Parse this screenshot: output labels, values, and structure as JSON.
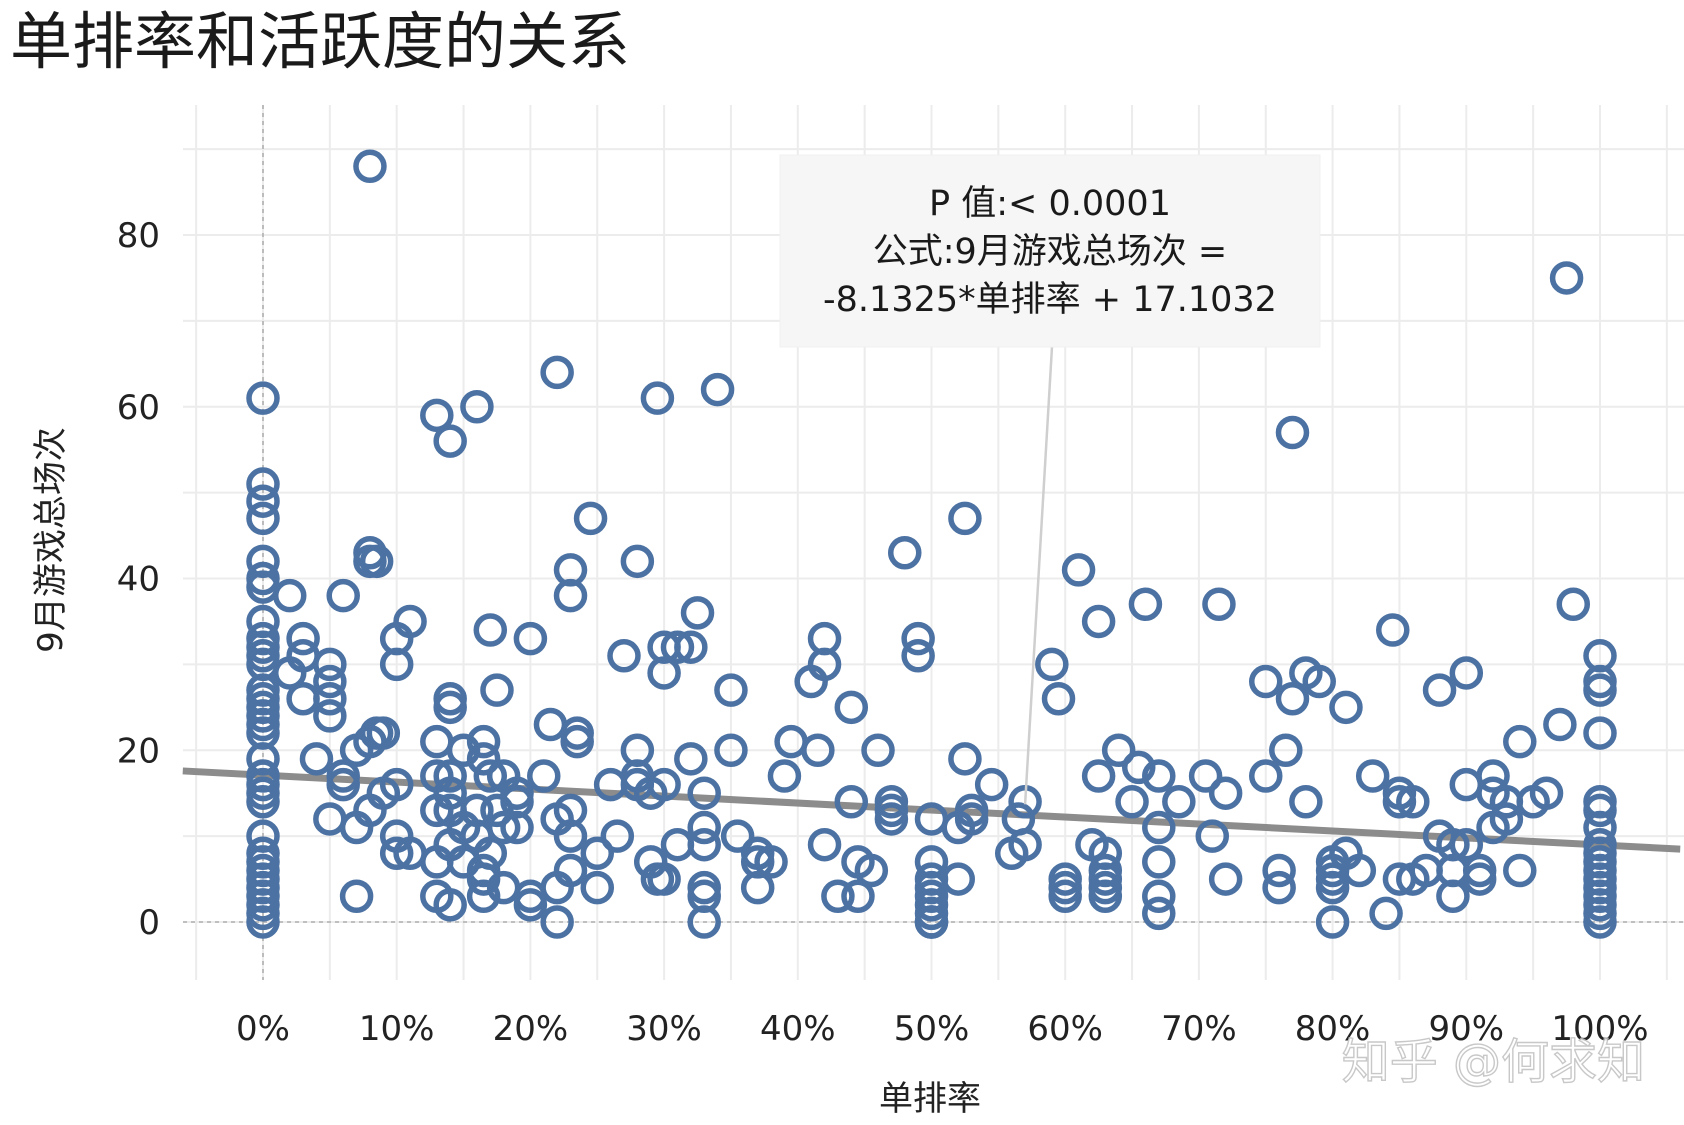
{
  "title": "单排率和活跃度的关系",
  "watermark": "知乎 @何求知",
  "chart_data": {
    "type": "scatter",
    "title": "单排率和活跃度的关系",
    "xlabel": "单排率",
    "ylabel": "9月游戏总场次",
    "xlim": [
      -0.06,
      1.06
    ],
    "ylim": [
      -7,
      95
    ],
    "x_tick_labels": [
      "0%",
      "10%",
      "20%",
      "30%",
      "40%",
      "50%",
      "60%",
      "70%",
      "80%",
      "90%",
      "100%"
    ],
    "y_tick_labels": [
      "0",
      "20",
      "40",
      "60",
      "80"
    ],
    "x_ticks": [
      0,
      0.1,
      0.2,
      0.3,
      0.4,
      0.5,
      0.6,
      0.7,
      0.8,
      0.9,
      1.0
    ],
    "y_ticks": [
      0,
      20,
      40,
      60,
      80
    ],
    "grid": true,
    "colors": {
      "points": "#4c72a3",
      "trend": "#8c8c8c",
      "reference": "#b0b0b0"
    },
    "trendline": {
      "slope": -8.1325,
      "intercept": 17.1032
    },
    "annotation": {
      "lines": [
        "P 值:< 0.0001",
        "公式:9月游戏总场次 =",
        "-8.1325*单排率 + 17.1032"
      ],
      "anchor": [
        0.57,
        13.7
      ]
    },
    "series": [
      {
        "points": [
          [
            0,
            61
          ],
          [
            0,
            51
          ],
          [
            0,
            49
          ],
          [
            0,
            47
          ],
          [
            0,
            42
          ],
          [
            0,
            40
          ],
          [
            0,
            39
          ],
          [
            0,
            35
          ],
          [
            0,
            33
          ],
          [
            0,
            32
          ],
          [
            0,
            31
          ],
          [
            0,
            30
          ],
          [
            0,
            27
          ],
          [
            0,
            26
          ],
          [
            0,
            25
          ],
          [
            0,
            24
          ],
          [
            0,
            23
          ],
          [
            0,
            22
          ],
          [
            0,
            19
          ],
          [
            0,
            17
          ],
          [
            0,
            16
          ],
          [
            0,
            15
          ],
          [
            0,
            14
          ],
          [
            0,
            10
          ],
          [
            0,
            8
          ],
          [
            0,
            7
          ],
          [
            0,
            6
          ],
          [
            0,
            5
          ],
          [
            0,
            4
          ],
          [
            0,
            3
          ],
          [
            0,
            2
          ],
          [
            0,
            1
          ],
          [
            0,
            0
          ],
          [
            0.02,
            38
          ],
          [
            0.03,
            33
          ],
          [
            0.03,
            31
          ],
          [
            0.02,
            29
          ],
          [
            0.03,
            26
          ],
          [
            0.05,
            30
          ],
          [
            0.05,
            28
          ],
          [
            0.05,
            26
          ],
          [
            0.05,
            24
          ],
          [
            0.04,
            19
          ],
          [
            0.06,
            17
          ],
          [
            0.06,
            16
          ],
          [
            0.05,
            12
          ],
          [
            0.07,
            11
          ],
          [
            0.06,
            38
          ],
          [
            0.07,
            20
          ],
          [
            0.07,
            3
          ],
          [
            0.08,
            88
          ],
          [
            0.08,
            43
          ],
          [
            0.08,
            42
          ],
          [
            0.085,
            42
          ],
          [
            0.08,
            21
          ],
          [
            0.085,
            22
          ],
          [
            0.09,
            22
          ],
          [
            0.08,
            13
          ],
          [
            0.09,
            15
          ],
          [
            0.1,
            33
          ],
          [
            0.1,
            30
          ],
          [
            0.11,
            35
          ],
          [
            0.1,
            16
          ],
          [
            0.1,
            10
          ],
          [
            0.1,
            8
          ],
          [
            0.11,
            8
          ],
          [
            0.13,
            59
          ],
          [
            0.14,
            56
          ],
          [
            0.13,
            21
          ],
          [
            0.13,
            17
          ],
          [
            0.14,
            17
          ],
          [
            0.14,
            15
          ],
          [
            0.13,
            13
          ],
          [
            0.14,
            13
          ],
          [
            0.13,
            7
          ],
          [
            0.13,
            3
          ],
          [
            0.14,
            26
          ],
          [
            0.14,
            25
          ],
          [
            0.15,
            20
          ],
          [
            0.14,
            9
          ],
          [
            0.15,
            11
          ],
          [
            0.16,
            13
          ],
          [
            0.16,
            10
          ],
          [
            0.15,
            7
          ],
          [
            0.14,
            2
          ],
          [
            0.16,
            60
          ],
          [
            0.17,
            34
          ],
          [
            0.175,
            27
          ],
          [
            0.165,
            21
          ],
          [
            0.165,
            19
          ],
          [
            0.17,
            17
          ],
          [
            0.18,
            17
          ],
          [
            0.175,
            13
          ],
          [
            0.18,
            11
          ],
          [
            0.17,
            8
          ],
          [
            0.165,
            6
          ],
          [
            0.165,
            5
          ],
          [
            0.165,
            3
          ],
          [
            0.18,
            4
          ],
          [
            0.19,
            11
          ],
          [
            0.19,
            14
          ],
          [
            0.19,
            15
          ],
          [
            0.2,
            33
          ],
          [
            0.21,
            17
          ],
          [
            0.2,
            3
          ],
          [
            0.2,
            2
          ],
          [
            0.215,
            23
          ],
          [
            0.22,
            64
          ],
          [
            0.22,
            12
          ],
          [
            0.22,
            4
          ],
          [
            0.22,
            0
          ],
          [
            0.23,
            41
          ],
          [
            0.23,
            38
          ],
          [
            0.235,
            22
          ],
          [
            0.235,
            21
          ],
          [
            0.23,
            13
          ],
          [
            0.23,
            10
          ],
          [
            0.23,
            6
          ],
          [
            0.245,
            47
          ],
          [
            0.25,
            8
          ],
          [
            0.25,
            4
          ],
          [
            0.26,
            16
          ],
          [
            0.265,
            10
          ],
          [
            0.28,
            42
          ],
          [
            0.27,
            31
          ],
          [
            0.28,
            20
          ],
          [
            0.28,
            17
          ],
          [
            0.28,
            16
          ],
          [
            0.29,
            15
          ],
          [
            0.29,
            7
          ],
          [
            0.295,
            5
          ],
          [
            0.295,
            61
          ],
          [
            0.3,
            32
          ],
          [
            0.3,
            29
          ],
          [
            0.31,
            32
          ],
          [
            0.3,
            16
          ],
          [
            0.3,
            5
          ],
          [
            0.31,
            9
          ],
          [
            0.32,
            32
          ],
          [
            0.32,
            19
          ],
          [
            0.325,
            36
          ],
          [
            0.33,
            15
          ],
          [
            0.33,
            11
          ],
          [
            0.33,
            9
          ],
          [
            0.33,
            4
          ],
          [
            0.33,
            3
          ],
          [
            0.33,
            0
          ],
          [
            0.34,
            62
          ],
          [
            0.35,
            27
          ],
          [
            0.35,
            20
          ],
          [
            0.355,
            10
          ],
          [
            0.37,
            8
          ],
          [
            0.37,
            7
          ],
          [
            0.38,
            7
          ],
          [
            0.37,
            4
          ],
          [
            0.39,
            17
          ],
          [
            0.395,
            21
          ],
          [
            0.41,
            28
          ],
          [
            0.415,
            20
          ],
          [
            0.42,
            9
          ],
          [
            0.42,
            33
          ],
          [
            0.42,
            30
          ],
          [
            0.43,
            3
          ],
          [
            0.44,
            25
          ],
          [
            0.44,
            14
          ],
          [
            0.445,
            7
          ],
          [
            0.445,
            3
          ],
          [
            0.455,
            6
          ],
          [
            0.46,
            20
          ],
          [
            0.47,
            14
          ],
          [
            0.47,
            13
          ],
          [
            0.47,
            12
          ],
          [
            0.48,
            43
          ],
          [
            0.49,
            33
          ],
          [
            0.49,
            31
          ],
          [
            0.5,
            12
          ],
          [
            0.5,
            7
          ],
          [
            0.5,
            5
          ],
          [
            0.5,
            4
          ],
          [
            0.5,
            3
          ],
          [
            0.5,
            2
          ],
          [
            0.5,
            1
          ],
          [
            0.5,
            0
          ],
          [
            0.5,
            0
          ],
          [
            0.5,
            0
          ],
          [
            0.52,
            11
          ],
          [
            0.525,
            47
          ],
          [
            0.525,
            19
          ],
          [
            0.53,
            13
          ],
          [
            0.53,
            12
          ],
          [
            0.52,
            5
          ],
          [
            0.545,
            16
          ],
          [
            0.56,
            8
          ],
          [
            0.565,
            12
          ],
          [
            0.57,
            14
          ],
          [
            0.57,
            9
          ],
          [
            0.59,
            30
          ],
          [
            0.595,
            26
          ],
          [
            0.6,
            5
          ],
          [
            0.6,
            4
          ],
          [
            0.6,
            3
          ],
          [
            0.61,
            41
          ],
          [
            0.62,
            9
          ],
          [
            0.625,
            17
          ],
          [
            0.625,
            35
          ],
          [
            0.63,
            8
          ],
          [
            0.63,
            6
          ],
          [
            0.63,
            5
          ],
          [
            0.63,
            4
          ],
          [
            0.63,
            3
          ],
          [
            0.64,
            20
          ],
          [
            0.65,
            14
          ],
          [
            0.655,
            18
          ],
          [
            0.66,
            37
          ],
          [
            0.67,
            17
          ],
          [
            0.67,
            11
          ],
          [
            0.67,
            7
          ],
          [
            0.67,
            3
          ],
          [
            0.67,
            1
          ],
          [
            0.685,
            14
          ],
          [
            0.705,
            17
          ],
          [
            0.71,
            10
          ],
          [
            0.715,
            37
          ],
          [
            0.72,
            15
          ],
          [
            0.72,
            5
          ],
          [
            0.75,
            17
          ],
          [
            0.75,
            28
          ],
          [
            0.76,
            6
          ],
          [
            0.76,
            4
          ],
          [
            0.765,
            20
          ],
          [
            0.77,
            57
          ],
          [
            0.77,
            26
          ],
          [
            0.78,
            29
          ],
          [
            0.78,
            14
          ],
          [
            0.79,
            28
          ],
          [
            0.8,
            7
          ],
          [
            0.8,
            6
          ],
          [
            0.8,
            5
          ],
          [
            0.8,
            4
          ],
          [
            0.8,
            0
          ],
          [
            0.81,
            8
          ],
          [
            0.81,
            25
          ],
          [
            0.82,
            6
          ],
          [
            0.83,
            17
          ],
          [
            0.84,
            1
          ],
          [
            0.845,
            34
          ],
          [
            0.85,
            15
          ],
          [
            0.85,
            14
          ],
          [
            0.85,
            5
          ],
          [
            0.86,
            14
          ],
          [
            0.86,
            5
          ],
          [
            0.87,
            6
          ],
          [
            0.88,
            10
          ],
          [
            0.88,
            27
          ],
          [
            0.89,
            9
          ],
          [
            0.89,
            6
          ],
          [
            0.89,
            3
          ],
          [
            0.9,
            16
          ],
          [
            0.9,
            29
          ],
          [
            0.9,
            9
          ],
          [
            0.91,
            6
          ],
          [
            0.91,
            5
          ],
          [
            0.92,
            11
          ],
          [
            0.92,
            17
          ],
          [
            0.92,
            15
          ],
          [
            0.93,
            12
          ],
          [
            0.93,
            14
          ],
          [
            0.94,
            6
          ],
          [
            0.94,
            21
          ],
          [
            0.95,
            14
          ],
          [
            0.96,
            15
          ],
          [
            0.97,
            23
          ],
          [
            0.975,
            75
          ],
          [
            0.98,
            37
          ],
          [
            1,
            31
          ],
          [
            1,
            28
          ],
          [
            1,
            27
          ],
          [
            1,
            22
          ],
          [
            1,
            14
          ],
          [
            1,
            13
          ],
          [
            1,
            11
          ],
          [
            1,
            9
          ],
          [
            1,
            8
          ],
          [
            1,
            7
          ],
          [
            1,
            6
          ],
          [
            1,
            5
          ],
          [
            1,
            4
          ],
          [
            1,
            3
          ],
          [
            1,
            2
          ],
          [
            1,
            1
          ],
          [
            1,
            0
          ]
        ]
      }
    ]
  }
}
